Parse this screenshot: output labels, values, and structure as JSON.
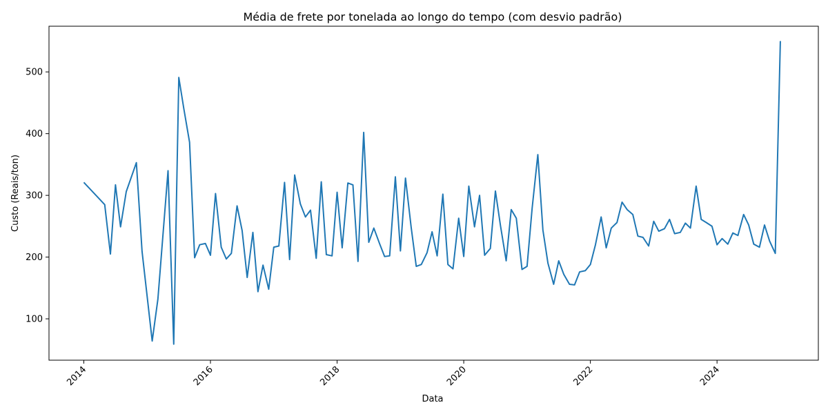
{
  "chart_data": {
    "type": "line",
    "title": "Média de frete por tonelada ao longo do tempo (com desvio padrão)",
    "xlabel": "Data",
    "ylabel": "Custo (Reais/ton)",
    "xlim": [
      2013.45,
      2025.6
    ],
    "ylim": [
      33,
      574
    ],
    "x_ticks": [
      2014,
      2016,
      2018,
      2020,
      2022,
      2024
    ],
    "x_tick_labels": [
      "2014",
      "2016",
      "2018",
      "2020",
      "2022",
      "2024"
    ],
    "y_ticks": [
      100,
      200,
      300,
      400,
      500
    ],
    "y_tick_labels": [
      "100",
      "200",
      "300",
      "400",
      "500"
    ],
    "grid": false,
    "line_color": "#1f77b4",
    "series": [
      {
        "x": [
          2014.0,
          2014.33,
          2014.42,
          2014.5,
          2014.58,
          2014.67,
          2014.83,
          2014.92,
          2015.08,
          2015.17,
          2015.33,
          2015.42,
          2015.5,
          2015.58,
          2015.67,
          2015.75,
          2015.83,
          2015.92,
          2016.0,
          2016.08,
          2016.17,
          2016.25,
          2016.33,
          2016.42,
          2016.5,
          2016.58,
          2016.67,
          2016.75,
          2016.83,
          2016.92,
          2017.0,
          2017.08,
          2017.17,
          2017.25,
          2017.33,
          2017.42,
          2017.5,
          2017.58,
          2017.67,
          2017.75,
          2017.83,
          2017.92,
          2018.0,
          2018.08,
          2018.17,
          2018.25,
          2018.33,
          2018.42,
          2018.5,
          2018.58,
          2018.67,
          2018.75,
          2018.83,
          2018.92,
          2019.0,
          2019.08,
          2019.17,
          2019.25,
          2019.33,
          2019.42,
          2019.5,
          2019.58,
          2019.67,
          2019.75,
          2019.83,
          2019.92,
          2020.0,
          2020.08,
          2020.17,
          2020.25,
          2020.33,
          2020.42,
          2020.5,
          2020.58,
          2020.67,
          2020.75,
          2020.83,
          2020.92,
          2021.0,
          2021.08,
          2021.17,
          2021.25,
          2021.33,
          2021.42,
          2021.5,
          2021.58,
          2021.67,
          2021.75,
          2021.83,
          2021.92,
          2022.0,
          2022.08,
          2022.17,
          2022.25,
          2022.33,
          2022.42,
          2022.5,
          2022.58,
          2022.67,
          2022.75,
          2022.83,
          2022.92,
          2023.0,
          2023.08,
          2023.17,
          2023.25,
          2023.33,
          2023.42,
          2023.5,
          2023.58,
          2023.67,
          2023.75,
          2023.83,
          2023.92,
          2024.0,
          2024.08,
          2024.17,
          2024.25,
          2024.33,
          2024.42,
          2024.5,
          2024.58,
          2024.67,
          2024.75,
          2024.83,
          2024.92,
          2025.0
        ],
        "y": [
          321,
          285,
          205,
          317,
          249,
          306,
          353,
          209,
          64,
          132,
          340,
          59,
          491,
          440,
          386,
          199,
          220,
          222,
          203,
          303,
          216,
          197,
          206,
          283,
          243,
          167,
          240,
          144,
          187,
          148,
          216,
          218,
          321,
          196,
          333,
          286,
          265,
          276,
          198,
          322,
          204,
          202,
          305,
          215,
          320,
          317,
          193,
          402,
          224,
          247,
          222,
          201,
          202,
          330,
          210,
          328,
          248,
          185,
          188,
          207,
          241,
          202,
          302,
          188,
          181,
          263,
          201,
          315,
          249,
          300,
          203,
          214,
          307,
          251,
          194,
          277,
          263,
          180,
          185,
          279,
          366,
          244,
          190,
          156,
          194,
          172,
          156,
          155,
          176,
          178,
          188,
          220,
          265,
          215,
          247,
          256,
          289,
          277,
          269,
          234,
          232,
          218,
          258,
          242,
          246,
          261,
          238,
          240,
          255,
          247,
          315,
          261,
          256,
          250,
          220,
          230,
          221,
          239,
          235,
          269,
          252,
          221,
          216,
          252,
          226,
          206,
          550
        ]
      }
    ]
  }
}
